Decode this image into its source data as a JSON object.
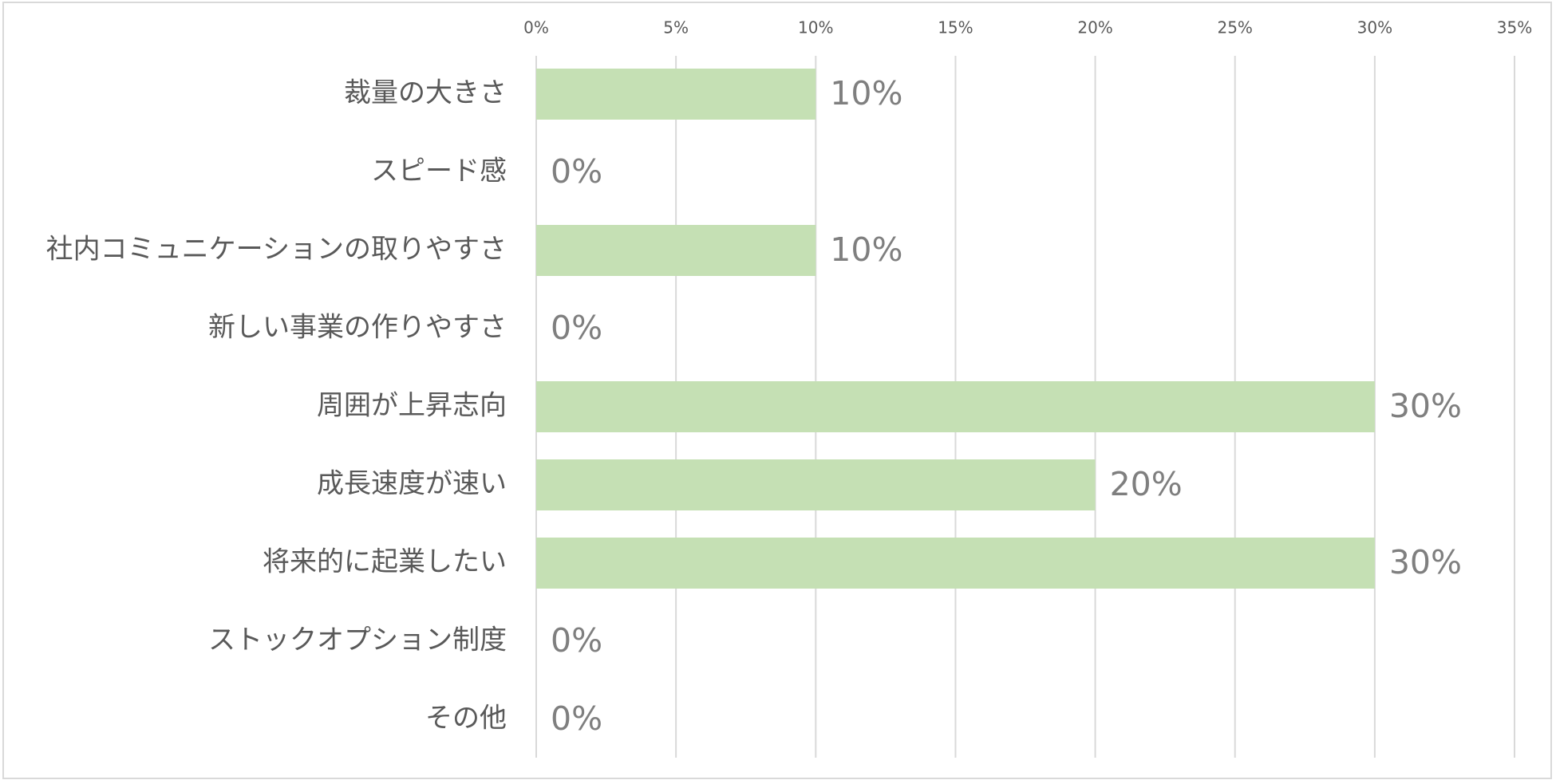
{
  "chart_data": {
    "type": "bar",
    "orientation": "horizontal",
    "categories": [
      "裁量の大きさ",
      "スピード感",
      "社内コミュニケーションの取りやすさ",
      "新しい事業の作りやすさ",
      "周囲が上昇志向",
      "成長速度が速い",
      "将来的に起業したい",
      "ストックオプション制度",
      "その他"
    ],
    "values": [
      10,
      0,
      10,
      0,
      30,
      20,
      30,
      0,
      0
    ],
    "data_labels": [
      "10%",
      "0%",
      "10%",
      "0%",
      "30%",
      "20%",
      "30%",
      "0%",
      "0%"
    ],
    "x_ticks": [
      "0%",
      "5%",
      "10%",
      "15%",
      "20%",
      "25%",
      "30%",
      "35%"
    ],
    "xlim": [
      0,
      35
    ],
    "x_axis_position": "top",
    "grid": true,
    "legend": "none",
    "title": "",
    "xlabel": "",
    "ylabel": "",
    "colors": {
      "bar": "#c5e0b4",
      "grid": "#d9d9d9",
      "tick_text": "#595959",
      "data_label_text": "#7f7f7f"
    }
  }
}
